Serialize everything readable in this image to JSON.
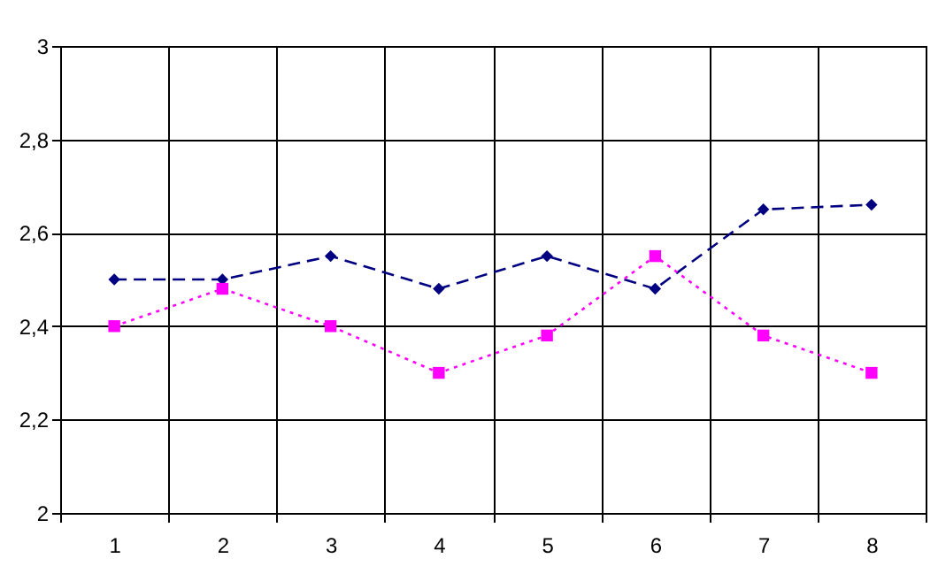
{
  "chart_data": {
    "type": "line",
    "categories": [
      "1",
      "2",
      "3",
      "4",
      "5",
      "6",
      "7",
      "8"
    ],
    "series": [
      {
        "color": "#000080",
        "marker": "diamond",
        "line_style": "dashed",
        "values": [
          2.5,
          2.5,
          2.55,
          2.48,
          2.55,
          2.48,
          2.65,
          2.66
        ]
      },
      {
        "color": "#ff00ff",
        "marker": "square",
        "line_style": "dotted",
        "values": [
          2.4,
          2.48,
          2.4,
          2.3,
          2.38,
          2.55,
          2.38,
          2.3
        ]
      }
    ],
    "ylim": [
      2,
      3
    ],
    "yticks": [
      2,
      {
        "value": 2.2,
        "label": "2,2"
      },
      {
        "value": 2.4,
        "label": "2,4"
      },
      {
        "value": 2.6,
        "label": "2,6"
      },
      {
        "value": 2.8,
        "label": "2,8"
      },
      3
    ],
    "grid": true
  }
}
